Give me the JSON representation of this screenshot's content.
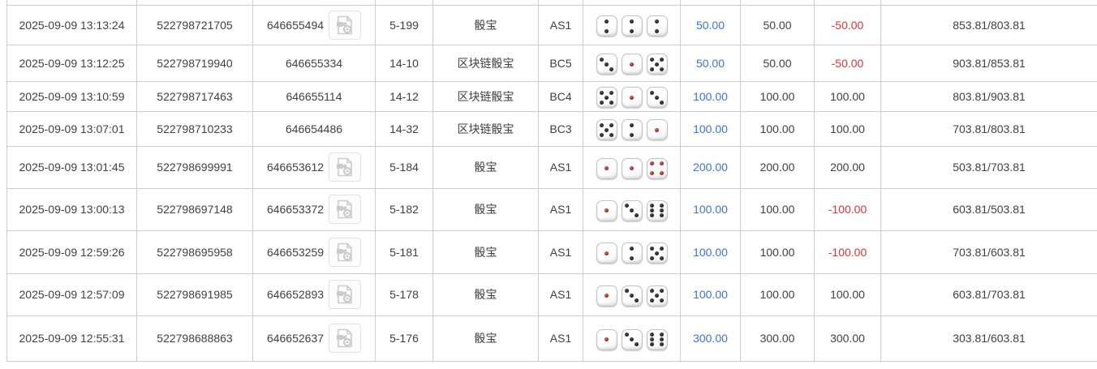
{
  "colors": {
    "link_blue": "#3a73d9",
    "loss_red": "#e03333",
    "text": "#404040",
    "grid": "#cccccc"
  },
  "icons": {
    "round_video_icon": "video-file-icon"
  },
  "games": {
    "sicbo": "骰宝",
    "blockchain_sicbo": "区块链骰宝"
  },
  "rows": [
    {
      "time": "2025-09-09 13:13:24",
      "bet_id": "522798721705",
      "round_id": "646655494",
      "has_video": true,
      "period": "5-199",
      "game": "骰宝",
      "table": "AS1",
      "dice": [
        2,
        2,
        2
      ],
      "bet": "50.00",
      "valid": "50.00",
      "winloss": "-50.00",
      "balance": "853.81/803.81"
    },
    {
      "time": "2025-09-09 13:12:25",
      "bet_id": "522798719940",
      "round_id": "646655334",
      "has_video": false,
      "period": "14-10",
      "game": "区块链骰宝",
      "table": "BC5",
      "dice": [
        3,
        1,
        5
      ],
      "bet": "50.00",
      "valid": "50.00",
      "winloss": "-50.00",
      "balance": "903.81/853.81"
    },
    {
      "time": "2025-09-09 13:10:59",
      "bet_id": "522798717463",
      "round_id": "646655114",
      "has_video": false,
      "period": "14-12",
      "game": "区块链骰宝",
      "table": "BC4",
      "dice": [
        5,
        1,
        3
      ],
      "bet": "100.00",
      "valid": "100.00",
      "winloss": "100.00",
      "balance": "803.81/903.81"
    },
    {
      "time": "2025-09-09 13:07:01",
      "bet_id": "522798710233",
      "round_id": "646654486",
      "has_video": false,
      "period": "14-32",
      "game": "区块链骰宝",
      "table": "BC3",
      "dice": [
        5,
        2,
        1
      ],
      "bet": "100.00",
      "valid": "100.00",
      "winloss": "100.00",
      "balance": "703.81/803.81"
    },
    {
      "time": "2025-09-09 13:01:45",
      "bet_id": "522798699991",
      "round_id": "646653612",
      "has_video": true,
      "period": "5-184",
      "game": "骰宝",
      "table": "AS1",
      "dice": [
        1,
        1,
        4
      ],
      "bet": "200.00",
      "valid": "200.00",
      "winloss": "200.00",
      "balance": "503.81/703.81"
    },
    {
      "time": "2025-09-09 13:00:13",
      "bet_id": "522798697148",
      "round_id": "646653372",
      "has_video": true,
      "period": "5-182",
      "game": "骰宝",
      "table": "AS1",
      "dice": [
        1,
        3,
        6
      ],
      "bet": "100.00",
      "valid": "100.00",
      "winloss": "-100.00",
      "balance": "603.81/503.81"
    },
    {
      "time": "2025-09-09 12:59:26",
      "bet_id": "522798695958",
      "round_id": "646653259",
      "has_video": true,
      "period": "5-181",
      "game": "骰宝",
      "table": "AS1",
      "dice": [
        1,
        2,
        5
      ],
      "bet": "100.00",
      "valid": "100.00",
      "winloss": "-100.00",
      "balance": "703.81/603.81"
    },
    {
      "time": "2025-09-09 12:57:09",
      "bet_id": "522798691985",
      "round_id": "646652893",
      "has_video": true,
      "period": "5-178",
      "game": "骰宝",
      "table": "AS1",
      "dice": [
        1,
        3,
        5
      ],
      "bet": "100.00",
      "valid": "100.00",
      "winloss": "100.00",
      "balance": "603.81/703.81"
    },
    {
      "time": "2025-09-09 12:55:31",
      "bet_id": "522798688863",
      "round_id": "646652637",
      "has_video": true,
      "period": "5-176",
      "game": "骰宝",
      "table": "AS1",
      "dice": [
        1,
        3,
        6
      ],
      "bet": "300.00",
      "valid": "300.00",
      "winloss": "300.00",
      "balance": "303.81/603.81"
    }
  ]
}
